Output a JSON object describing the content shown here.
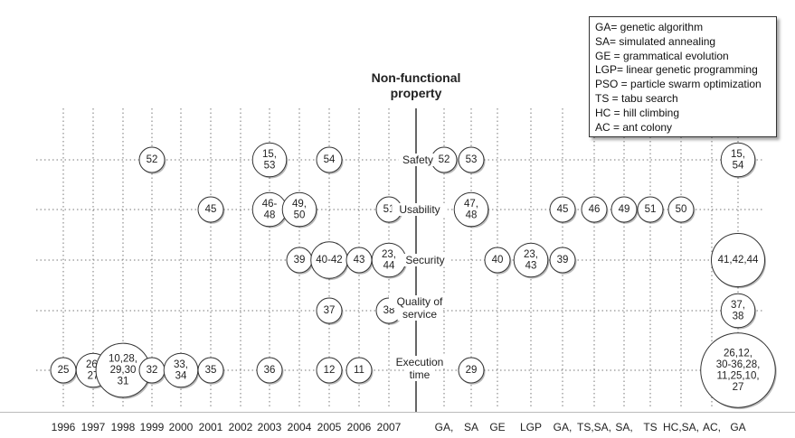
{
  "title_lines": [
    "Non-functional",
    "property"
  ],
  "legend": [
    "GA= genetic algorithm",
    "SA= simulated annealing",
    "GE = grammatical evolution",
    "LGP= linear genetic programming",
    "PSO = particle swarm optimization",
    "TS = tabu search",
    "HC = hill climbing",
    "AC = ant colony"
  ],
  "rows": [
    {
      "id": "safety",
      "label_lines": [
        "Safety"
      ]
    },
    {
      "id": "usability",
      "label_lines": [
        "Usability"
      ]
    },
    {
      "id": "security",
      "label_lines": [
        "Security"
      ]
    },
    {
      "id": "qos",
      "label_lines": [
        "Quality of",
        "service"
      ]
    },
    {
      "id": "exec",
      "label_lines": [
        "Execution",
        "time"
      ]
    }
  ],
  "year_labels": [
    "1996",
    "1997",
    "1998",
    "1999",
    "2000",
    "2001",
    "2002",
    "2003",
    "2004",
    "2005",
    "2006",
    "2007"
  ],
  "technique_labels": [
    "GA,",
    "SA",
    "GE",
    "LGP",
    "GA,",
    "TS,SA,",
    "SA,",
    "TS",
    "HC,SA,",
    "AC,",
    "GA"
  ],
  "bubbles": [
    {
      "row": "safety",
      "col": "y1999",
      "lines": [
        "52"
      ]
    },
    {
      "row": "safety",
      "col": "y2003",
      "lines": [
        "15,",
        "53"
      ]
    },
    {
      "row": "safety",
      "col": "y2005",
      "lines": [
        "54"
      ]
    },
    {
      "row": "safety",
      "col": "t_ga",
      "lines": [
        "52"
      ]
    },
    {
      "row": "safety",
      "col": "t_sa",
      "lines": [
        "53"
      ]
    },
    {
      "row": "safety",
      "col": "t_ga2",
      "lines": [
        "15,",
        "54"
      ]
    },
    {
      "row": "usability",
      "col": "y2001",
      "lines": [
        "45"
      ]
    },
    {
      "row": "usability",
      "col": "y2003",
      "lines": [
        "46-",
        "48"
      ]
    },
    {
      "row": "usability",
      "col": "y2004",
      "lines": [
        "49,",
        "50"
      ]
    },
    {
      "row": "usability",
      "col": "y2007",
      "lines": [
        "51"
      ]
    },
    {
      "row": "usability",
      "col": "t_sa",
      "lines": [
        "47,",
        "48"
      ]
    },
    {
      "row": "usability",
      "col": "t_c5",
      "lines": [
        "45"
      ]
    },
    {
      "row": "usability",
      "col": "t_c6",
      "lines": [
        "46"
      ]
    },
    {
      "row": "usability",
      "col": "t_c7",
      "lines": [
        "49"
      ]
    },
    {
      "row": "usability",
      "col": "t_c8",
      "lines": [
        "51"
      ]
    },
    {
      "row": "usability",
      "col": "t_c9",
      "lines": [
        "50"
      ]
    },
    {
      "row": "security",
      "col": "y2004",
      "lines": [
        "39"
      ]
    },
    {
      "row": "security",
      "col": "y2005",
      "lines": [
        "40-42"
      ]
    },
    {
      "row": "security",
      "col": "y2006",
      "lines": [
        "43"
      ]
    },
    {
      "row": "security",
      "col": "y2007",
      "lines": [
        "23,",
        "44"
      ]
    },
    {
      "row": "security",
      "col": "t_ge",
      "lines": [
        "40"
      ]
    },
    {
      "row": "security",
      "col": "t_lgp",
      "lines": [
        "23,",
        "43"
      ]
    },
    {
      "row": "security",
      "col": "t_c5",
      "lines": [
        "39"
      ]
    },
    {
      "row": "security",
      "col": "t_ga2",
      "lines": [
        "41,42,44"
      ]
    },
    {
      "row": "qos",
      "col": "y2005",
      "lines": [
        "37"
      ]
    },
    {
      "row": "qos",
      "col": "y2007",
      "lines": [
        "38"
      ]
    },
    {
      "row": "qos",
      "col": "t_ga2",
      "lines": [
        "37,",
        "38"
      ]
    },
    {
      "row": "exec",
      "col": "y1996",
      "lines": [
        "25"
      ]
    },
    {
      "row": "exec",
      "col": "y1997",
      "lines": [
        "26,",
        "27"
      ]
    },
    {
      "row": "exec",
      "col": "y1998",
      "lines": [
        "10,28,",
        "29,30",
        "31"
      ]
    },
    {
      "row": "exec",
      "col": "y1999",
      "lines": [
        "32"
      ]
    },
    {
      "row": "exec",
      "col": "y2000",
      "lines": [
        "33,",
        "34"
      ]
    },
    {
      "row": "exec",
      "col": "y2001",
      "lines": [
        "35"
      ]
    },
    {
      "row": "exec",
      "col": "y2003",
      "lines": [
        "36"
      ]
    },
    {
      "row": "exec",
      "col": "y2005",
      "lines": [
        "12"
      ]
    },
    {
      "row": "exec",
      "col": "y2006",
      "lines": [
        "11"
      ]
    },
    {
      "row": "exec",
      "col": "t_sa",
      "lines": [
        "29"
      ]
    },
    {
      "row": "exec",
      "col": "t_ga2",
      "lines": [
        "26,12,",
        "30-36,28,",
        "11,25,10,",
        "27"
      ]
    }
  ]
}
